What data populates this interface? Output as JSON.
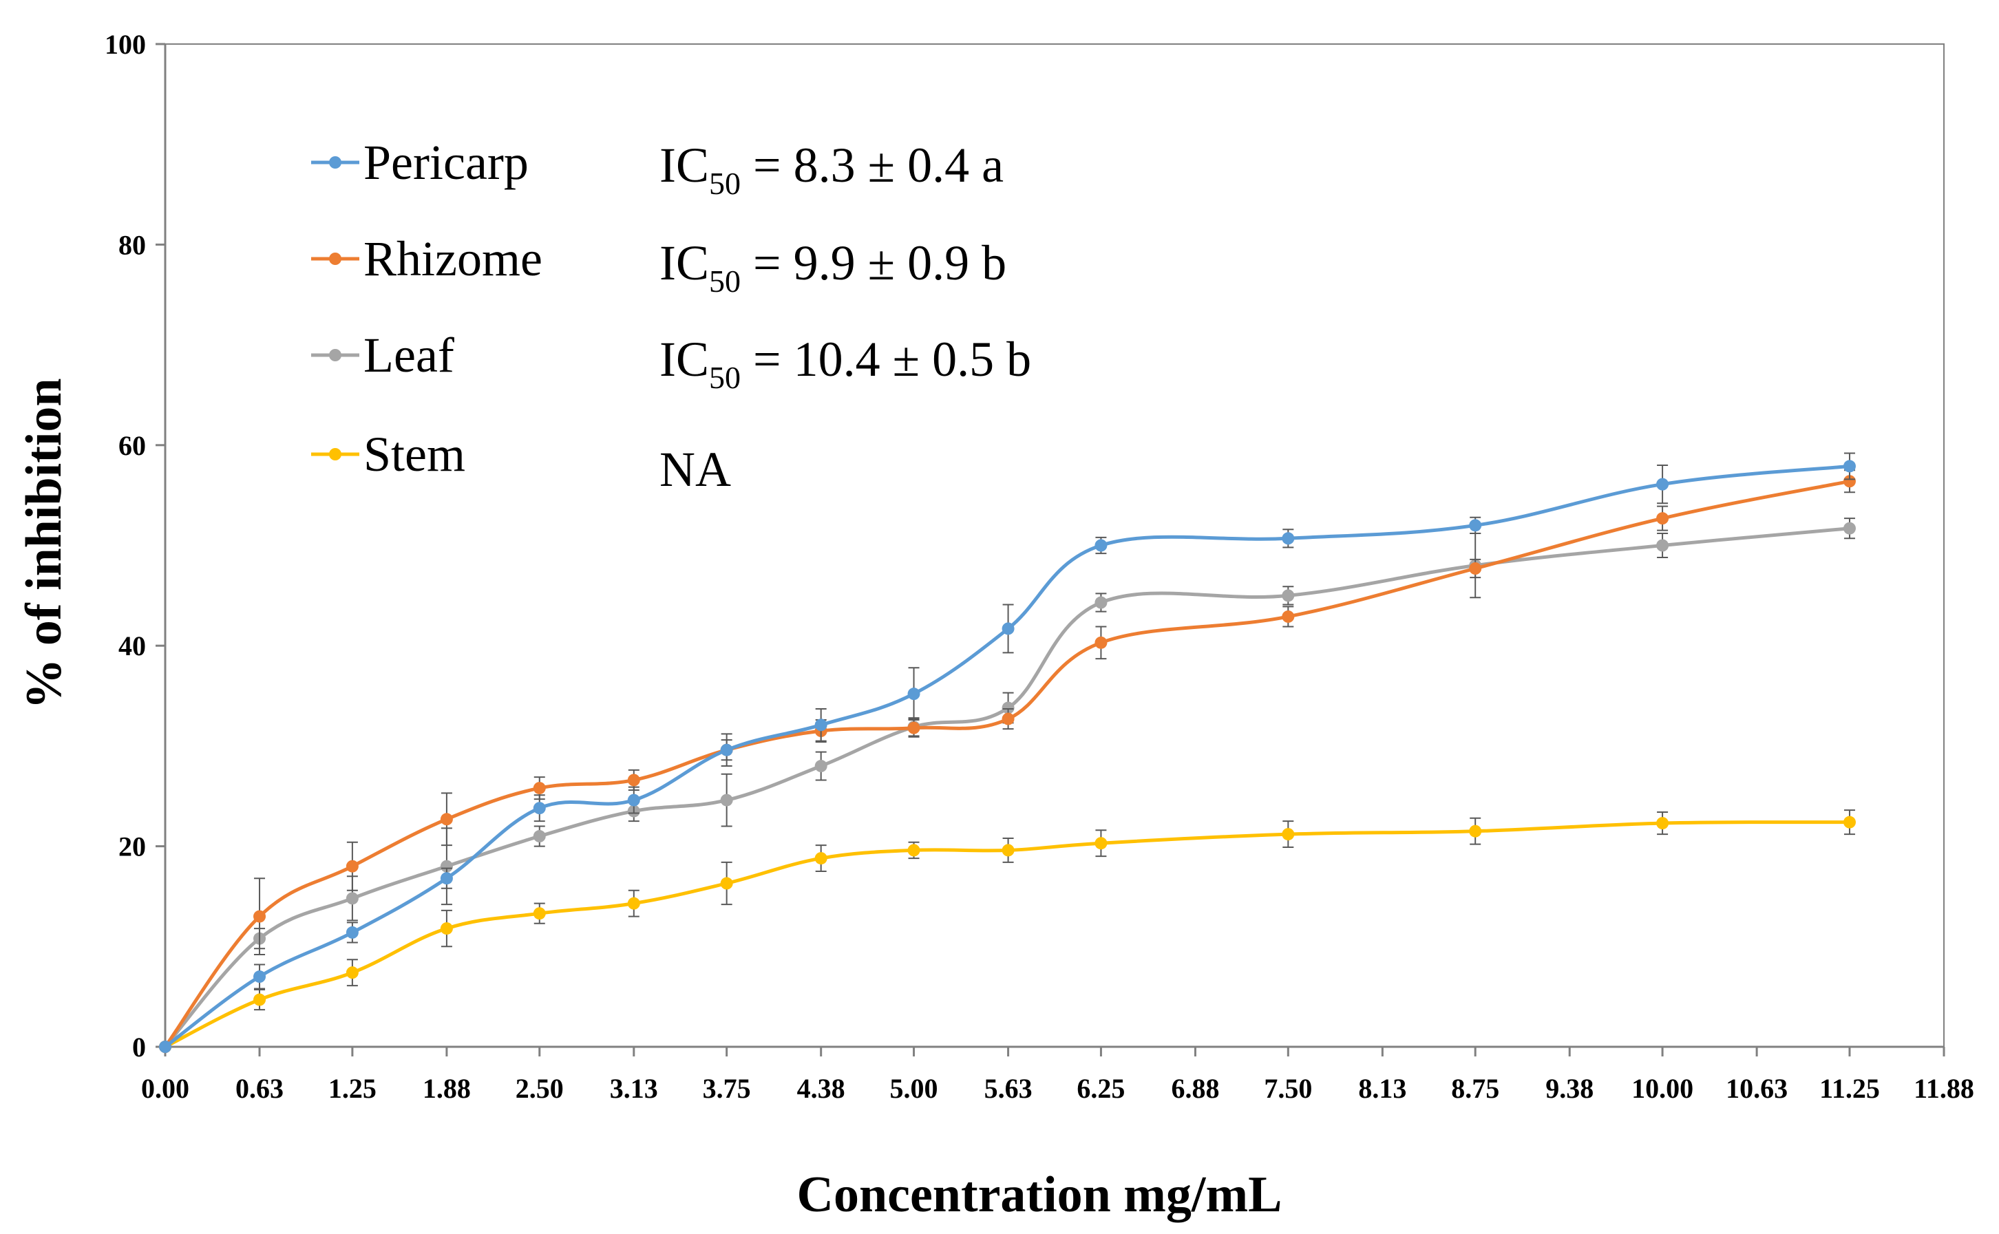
{
  "chart_data": {
    "type": "line",
    "xlabel": "Concentration mg/mL",
    "ylabel": "% of inhibition",
    "ylim": [
      0,
      100
    ],
    "xlim": [
      0,
      11.88
    ],
    "y_ticks": [
      "0",
      "20",
      "40",
      "60",
      "80",
      "100"
    ],
    "x_ticks": [
      "0.00",
      "0.63",
      "1.25",
      "1.88",
      "2.50",
      "3.13",
      "3.75",
      "4.38",
      "5.00",
      "5.63",
      "6.25",
      "6.88",
      "7.50",
      "8.13",
      "8.75",
      "9.38",
      "10.00",
      "10.63",
      "11.25",
      "11.88"
    ],
    "grid": false,
    "legend_position": "top-left",
    "x": [
      0,
      0.63,
      1.25,
      1.88,
      2.5,
      3.13,
      3.75,
      4.38,
      5.0,
      5.63,
      6.25,
      7.5,
      8.75,
      10.0,
      11.25
    ],
    "series": [
      {
        "name": "Pericarp",
        "color": "#5B9BD5",
        "values": [
          0,
          7.0,
          11.4,
          16.8,
          23.8,
          24.6,
          29.6,
          32.1,
          35.2,
          41.7,
          50.0,
          50.7,
          52.0,
          56.1,
          57.9
        ],
        "errors": [
          0,
          1.2,
          1.0,
          1.0,
          1.3,
          1.3,
          1.6,
          1.6,
          2.6,
          2.4,
          0.8,
          0.9,
          0.8,
          1.9,
          1.3
        ]
      },
      {
        "name": "Rhizome",
        "color": "#ED7D31",
        "values": [
          0,
          13.0,
          18.0,
          22.7,
          25.8,
          26.6,
          29.6,
          31.5,
          31.8,
          32.7,
          40.3,
          42.9,
          47.7,
          52.7,
          56.4
        ],
        "errors": [
          0,
          3.8,
          2.4,
          2.6,
          1.1,
          1.0,
          1.0,
          1.1,
          0.9,
          1.0,
          1.6,
          1.0,
          0.9,
          1.2,
          1.1
        ]
      },
      {
        "name": "Leaf",
        "color": "#A5A5A5",
        "values": [
          0,
          10.8,
          14.8,
          18.0,
          21.0,
          23.5,
          24.6,
          28.0,
          31.9,
          33.8,
          44.3,
          45.0,
          48.0,
          50.0,
          51.7
        ],
        "errors": [
          0,
          1.0,
          2.2,
          3.8,
          1.0,
          1.0,
          2.6,
          1.4,
          0.9,
          1.5,
          0.9,
          0.9,
          3.2,
          1.2,
          1.0
        ]
      },
      {
        "name": "Stem",
        "color": "#FFC000",
        "values": [
          0,
          4.7,
          7.4,
          11.8,
          13.3,
          14.3,
          16.3,
          18.8,
          19.6,
          19.6,
          20.3,
          21.2,
          21.5,
          22.3,
          22.4
        ],
        "errors": [
          0,
          1.0,
          1.3,
          1.8,
          1.0,
          1.3,
          2.1,
          1.3,
          0.8,
          1.2,
          1.3,
          1.3,
          1.3,
          1.1,
          1.2
        ]
      }
    ],
    "annotations": [
      {
        "prefix": "IC",
        "sub": "50",
        "text": " = 8.3 ± 0.4 a"
      },
      {
        "prefix": "IC",
        "sub": "50",
        "text": " = 9.9 ± 0.9 b"
      },
      {
        "prefix": "IC",
        "sub": "50",
        "text": " = 10.4 ± 0.5 b"
      },
      {
        "prefix": "",
        "sub": "",
        "text": "NA"
      }
    ]
  }
}
